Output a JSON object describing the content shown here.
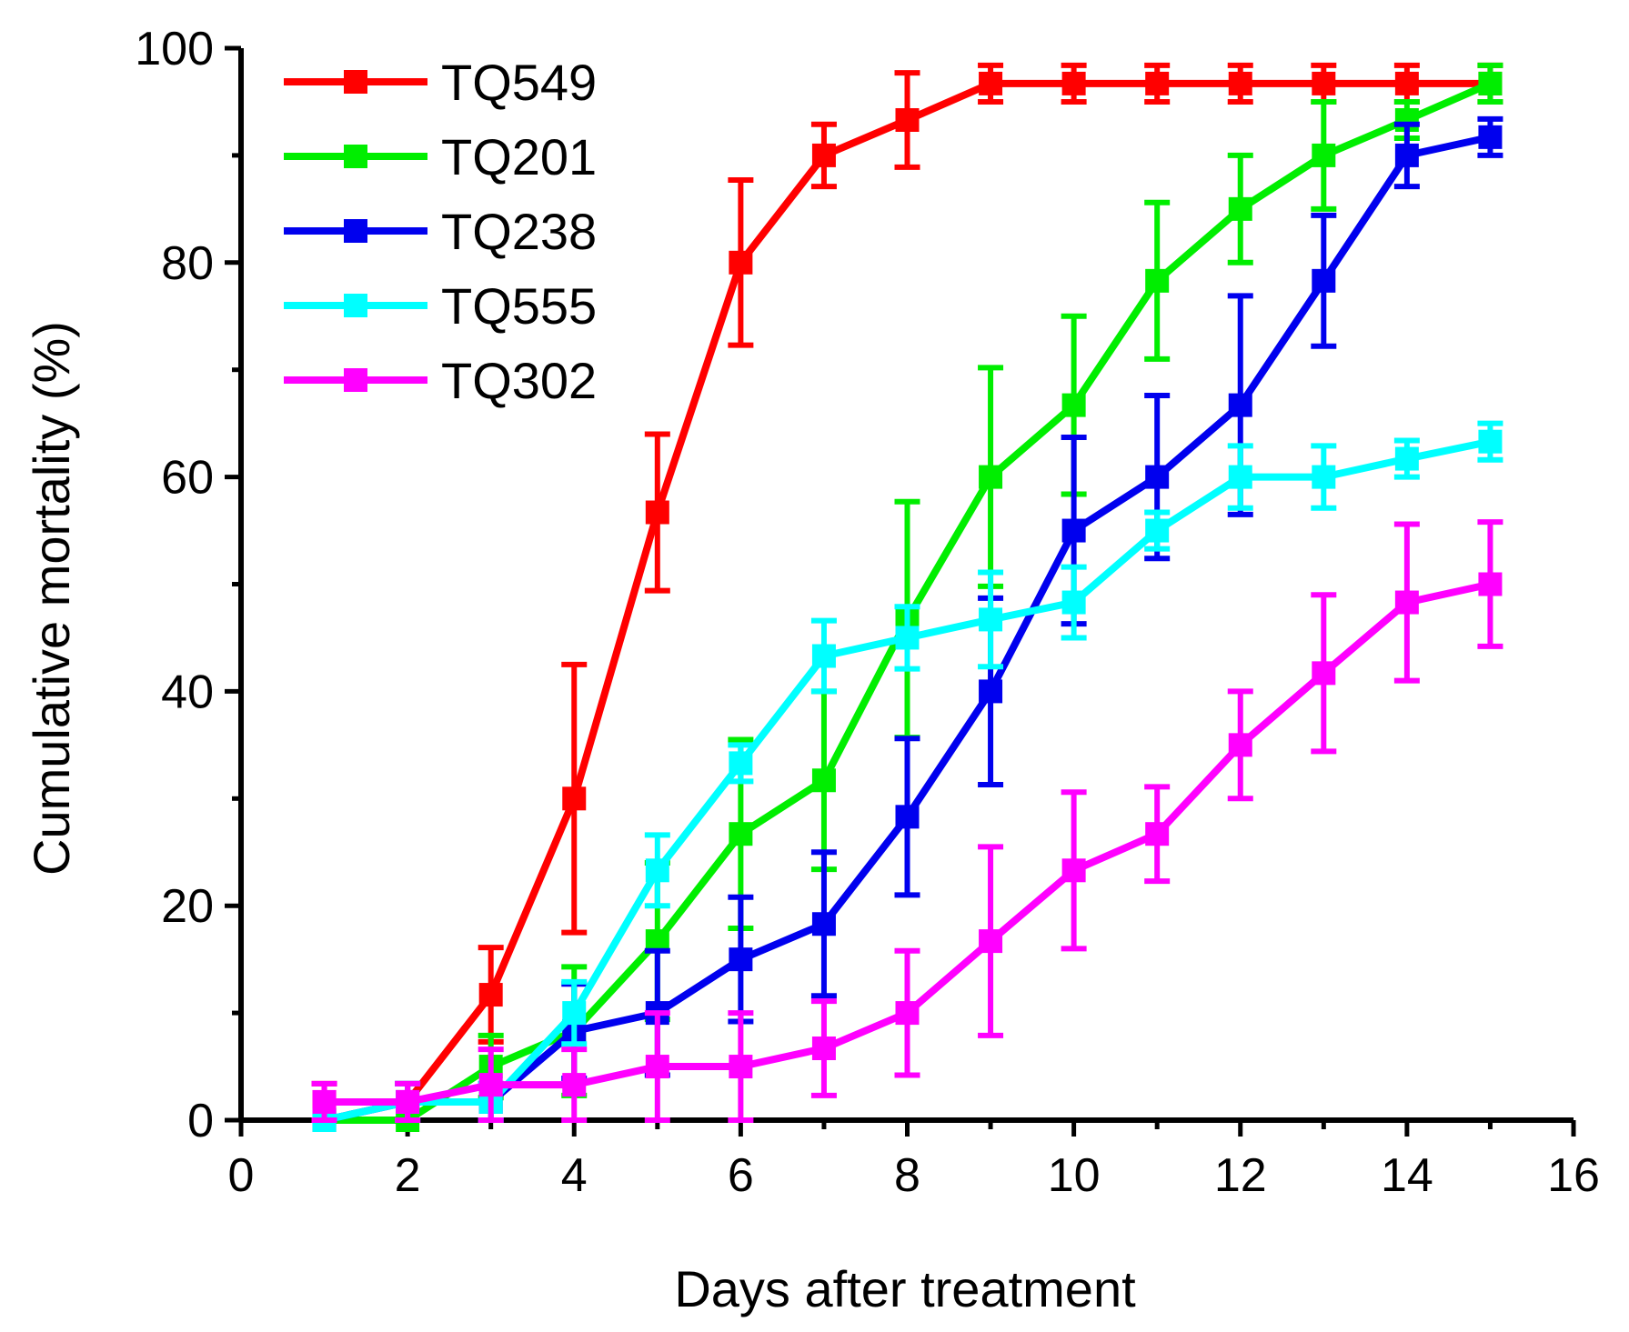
{
  "chart_data": {
    "type": "line",
    "xlabel": "Days after treatment",
    "ylabel": "Cumulative mortality (%)",
    "xlim": [
      0,
      16
    ],
    "ylim": [
      0,
      100
    ],
    "xticks": [
      0,
      2,
      4,
      6,
      8,
      10,
      12,
      14,
      16
    ],
    "yticks": [
      0,
      20,
      40,
      60,
      80,
      100
    ],
    "grid": false,
    "legend_position": "top-left",
    "x": [
      1,
      2,
      3,
      4,
      5,
      6,
      7,
      8,
      9,
      10,
      11,
      12,
      13,
      14,
      15
    ],
    "series": [
      {
        "name": "TQ549",
        "color": "#ff0000",
        "values": [
          1.7,
          1.7,
          11.7,
          30,
          56.7,
          80,
          90,
          93.3,
          96.7,
          96.7,
          96.7,
          96.7,
          96.7,
          96.7,
          96.7
        ],
        "errors": [
          1.7,
          1.7,
          4.4,
          12.5,
          7.3,
          7.7,
          2.9,
          4.4,
          1.7,
          1.7,
          1.7,
          1.7,
          1.7,
          1.7,
          1.7
        ]
      },
      {
        "name": "TQ201",
        "color": "#00ee00",
        "values": [
          0,
          0,
          5,
          8.3,
          16.7,
          26.7,
          31.7,
          46.7,
          60,
          66.7,
          78.3,
          85,
          90,
          93.3,
          96.7
        ],
        "errors": [
          0,
          0,
          2.9,
          6,
          7.3,
          8.8,
          8.3,
          11,
          10.2,
          8.3,
          7.3,
          5,
          5,
          1.7,
          1.7
        ]
      },
      {
        "name": "TQ238",
        "color": "#0000ee",
        "values": [
          0,
          1.7,
          1.7,
          8.3,
          10,
          15,
          18.3,
          28.3,
          40,
          55,
          60,
          66.7,
          78.3,
          90,
          91.7
        ],
        "errors": [
          0,
          1.7,
          1.7,
          4.4,
          5.8,
          5.8,
          6.7,
          7.3,
          8.7,
          8.7,
          7.6,
          10.2,
          6.1,
          2.9,
          1.7
        ]
      },
      {
        "name": "TQ555",
        "color": "#00ffff",
        "values": [
          0,
          1.7,
          1.7,
          10,
          23.3,
          33.3,
          43.3,
          45,
          46.7,
          48.3,
          55,
          60,
          60,
          61.7,
          63.3
        ],
        "errors": [
          0,
          1.7,
          1.7,
          2.9,
          3.3,
          1.7,
          3.3,
          2.9,
          4.4,
          3.3,
          1.7,
          2.9,
          2.9,
          1.7,
          1.7
        ]
      },
      {
        "name": "TQ302",
        "color": "#ff00ff",
        "values": [
          1.7,
          1.7,
          3.3,
          3.3,
          5,
          5,
          6.7,
          10,
          16.7,
          23.3,
          26.7,
          35,
          41.7,
          48.3,
          50
        ],
        "errors": [
          1.7,
          1.7,
          3.3,
          3.3,
          5,
          5,
          4.4,
          5.8,
          8.8,
          7.3,
          4.4,
          5,
          7.3,
          7.3,
          5.8
        ]
      }
    ]
  }
}
